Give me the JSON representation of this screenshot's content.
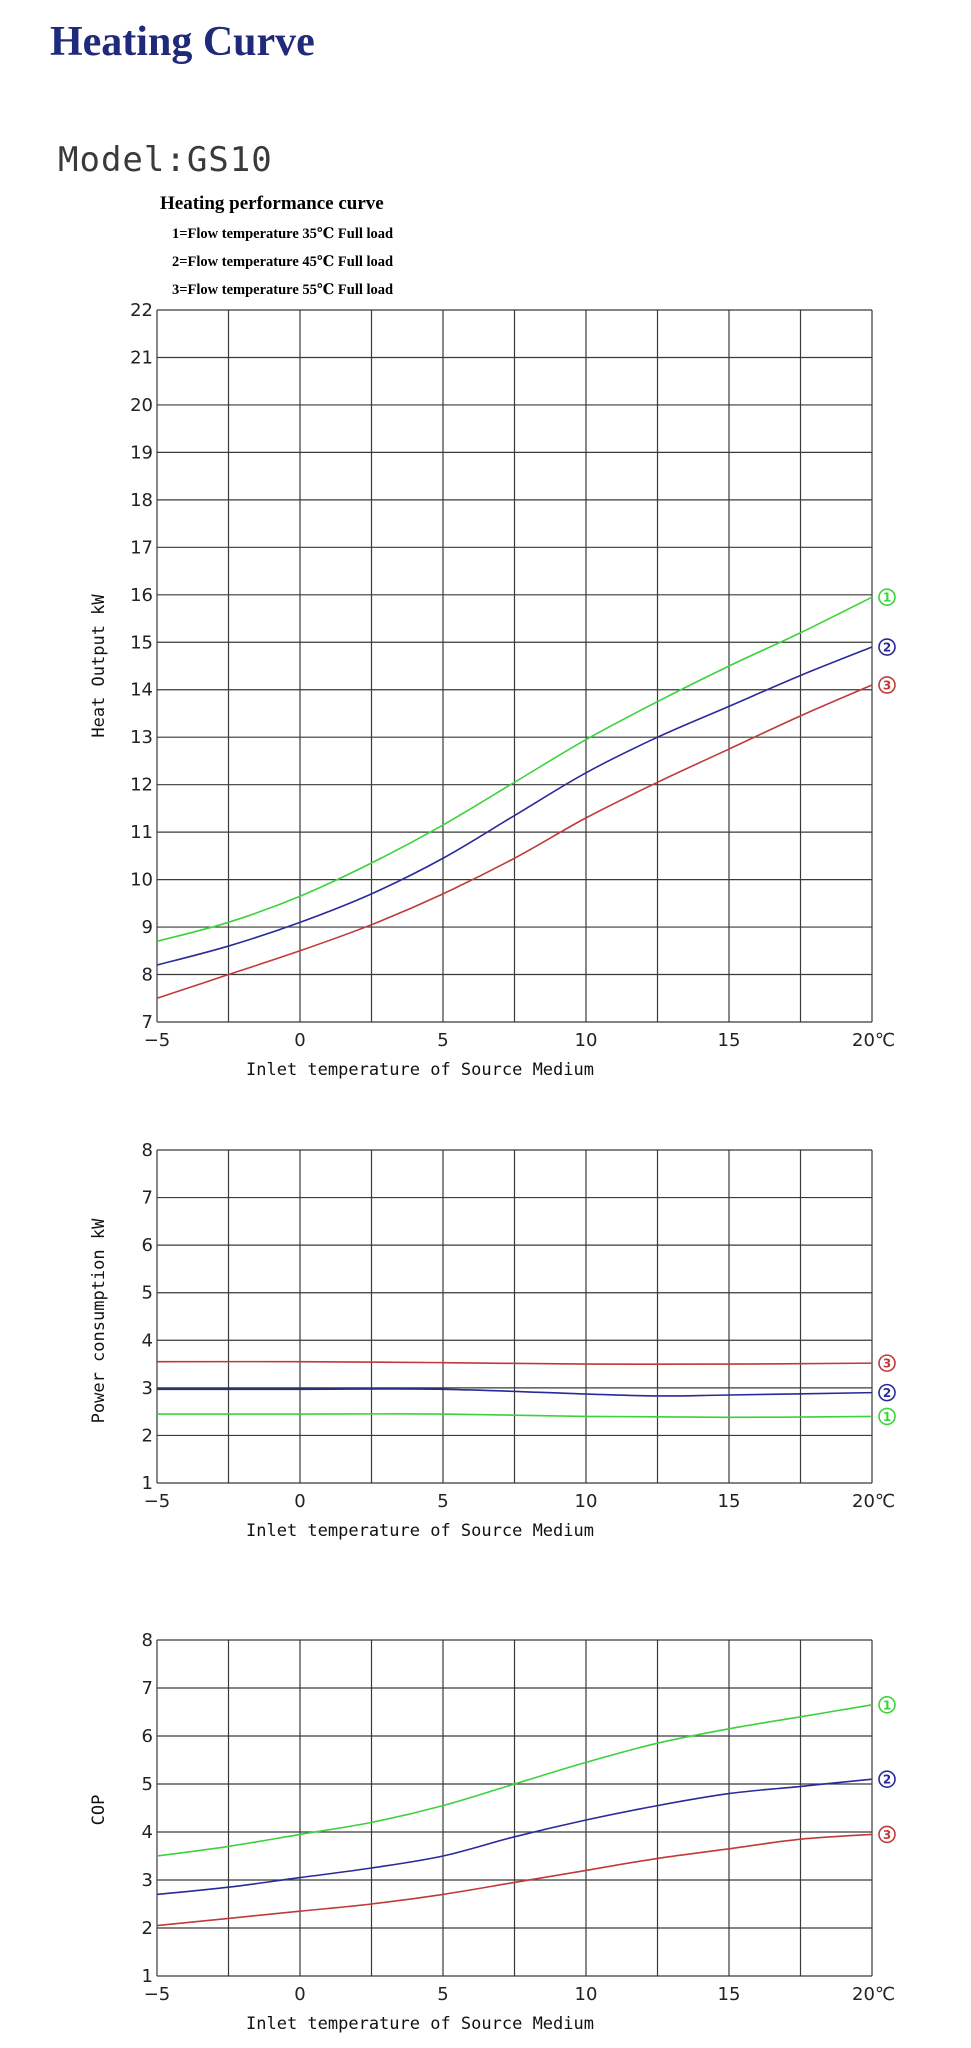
{
  "page": {
    "title": "Heating Curve",
    "model": "Model:GS10",
    "legend_title": "Heating performance curve",
    "legend_lines": [
      "1=Flow temperature 35℃  Full load",
      "2=Flow temperature 45℃  Full load",
      "3=Flow temperature 55℃  Full load"
    ]
  },
  "colors": {
    "s1": "#3cd23c",
    "s2": "#2a2a9a",
    "s3": "#c03a3a",
    "grid": "#3a3a3a"
  },
  "chart_data": [
    {
      "type": "line",
      "title": "",
      "xlabel": "Inlet temperature of Source Medium",
      "ylabel": "Heat Output kW",
      "xlim": [
        -5,
        20
      ],
      "ylim": [
        7,
        22
      ],
      "xticks": [
        -5,
        0,
        5,
        10,
        15,
        20
      ],
      "xtick_labels": [
        "−5",
        "0",
        "5",
        "10",
        "15",
        "20℃"
      ],
      "yticks": [
        7,
        8,
        9,
        10,
        11,
        12,
        13,
        14,
        15,
        16,
        17,
        18,
        19,
        20,
        21,
        22
      ],
      "grid": true,
      "series": [
        {
          "name": "1",
          "color": "#3cd23c",
          "x": [
            -5,
            -2.5,
            0,
            2.5,
            5,
            7.5,
            10,
            12.5,
            15,
            17.5,
            20
          ],
          "y": [
            8.7,
            9.1,
            9.65,
            10.35,
            11.15,
            12.05,
            12.95,
            13.75,
            14.5,
            15.2,
            15.95
          ]
        },
        {
          "name": "2",
          "color": "#2a2a9a",
          "x": [
            -5,
            -2.5,
            0,
            2.5,
            5,
            7.5,
            10,
            12.5,
            15,
            17.5,
            20
          ],
          "y": [
            8.2,
            8.6,
            9.1,
            9.7,
            10.45,
            11.35,
            12.25,
            13.0,
            13.65,
            14.3,
            14.9
          ]
        },
        {
          "name": "3",
          "color": "#c03a3a",
          "x": [
            -5,
            -2.5,
            0,
            2.5,
            5,
            7.5,
            10,
            12.5,
            15,
            17.5,
            20
          ],
          "y": [
            7.5,
            8.0,
            8.5,
            9.05,
            9.7,
            10.45,
            11.3,
            12.05,
            12.75,
            13.45,
            14.1
          ]
        }
      ]
    },
    {
      "type": "line",
      "title": "",
      "xlabel": "Inlet temperature of Source Medium",
      "ylabel": "Power consumption kW",
      "xlim": [
        -5,
        20
      ],
      "ylim": [
        1,
        8
      ],
      "xticks": [
        -5,
        0,
        5,
        10,
        15,
        20
      ],
      "xtick_labels": [
        "−5",
        "0",
        "5",
        "10",
        "15",
        "20℃"
      ],
      "yticks": [
        1,
        2,
        3,
        4,
        5,
        6,
        7,
        8
      ],
      "grid": true,
      "series": [
        {
          "name": "3",
          "color": "#c03a3a",
          "x": [
            -5,
            0,
            5,
            10,
            15,
            20
          ],
          "y": [
            3.55,
            3.55,
            3.53,
            3.5,
            3.5,
            3.52
          ]
        },
        {
          "name": "2",
          "color": "#2a2a9a",
          "x": [
            -5,
            0,
            5,
            10,
            12.5,
            15,
            20
          ],
          "y": [
            2.97,
            2.97,
            2.97,
            2.87,
            2.83,
            2.85,
            2.9
          ]
        },
        {
          "name": "1",
          "color": "#3cd23c",
          "x": [
            -5,
            0,
            5,
            10,
            15,
            20
          ],
          "y": [
            2.45,
            2.45,
            2.45,
            2.4,
            2.38,
            2.4
          ]
        }
      ]
    },
    {
      "type": "line",
      "title": "",
      "xlabel": "Inlet temperature of Source Medium",
      "ylabel": "COP",
      "xlim": [
        -5,
        20
      ],
      "ylim": [
        1,
        8
      ],
      "xticks": [
        -5,
        0,
        5,
        10,
        15,
        20
      ],
      "xtick_labels": [
        "−5",
        "0",
        "5",
        "10",
        "15",
        "20℃"
      ],
      "yticks": [
        1,
        2,
        3,
        4,
        5,
        6,
        7,
        8
      ],
      "grid": true,
      "series": [
        {
          "name": "1",
          "color": "#3cd23c",
          "x": [
            -5,
            -2.5,
            0,
            2.5,
            5,
            7.5,
            10,
            12.5,
            15,
            17.5,
            20
          ],
          "y": [
            3.5,
            3.7,
            3.95,
            4.2,
            4.55,
            5.0,
            5.45,
            5.85,
            6.15,
            6.4,
            6.65
          ]
        },
        {
          "name": "2",
          "color": "#2a2a9a",
          "x": [
            -5,
            -2.5,
            0,
            2.5,
            5,
            7.5,
            10,
            12.5,
            15,
            17.5,
            20
          ],
          "y": [
            2.7,
            2.85,
            3.05,
            3.25,
            3.5,
            3.9,
            4.25,
            4.55,
            4.8,
            4.95,
            5.1
          ]
        },
        {
          "name": "3",
          "color": "#c03a3a",
          "x": [
            -5,
            -2.5,
            0,
            2.5,
            5,
            7.5,
            10,
            12.5,
            15,
            17.5,
            20
          ],
          "y": [
            2.05,
            2.2,
            2.35,
            2.5,
            2.7,
            2.95,
            3.2,
            3.45,
            3.65,
            3.85,
            3.95
          ]
        }
      ]
    }
  ]
}
